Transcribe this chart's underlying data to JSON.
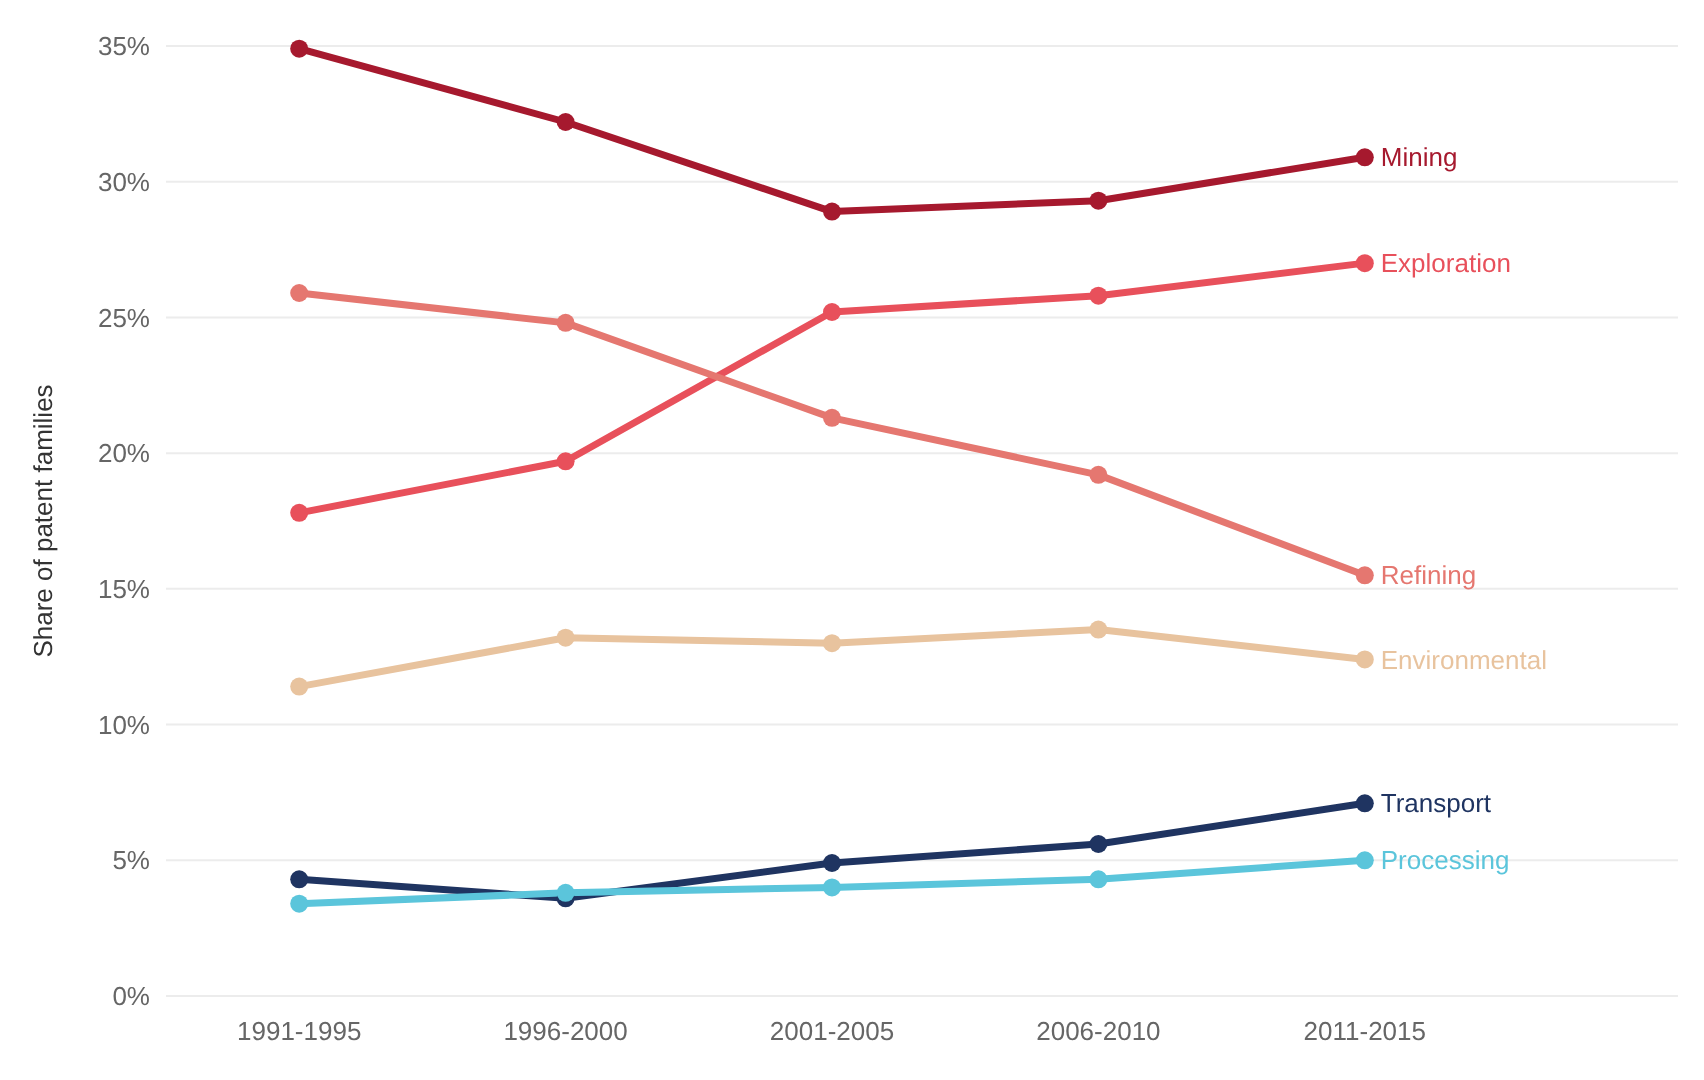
{
  "chart_data": {
    "type": "line",
    "ylabel": "Share of patent families",
    "categories": [
      "1991-1995",
      "1996-2000",
      "2001-2005",
      "2006-2010",
      "2011-2015"
    ],
    "ylim": [
      0,
      35
    ],
    "yticks": [
      {
        "value": 0,
        "label": "0%"
      },
      {
        "value": 5,
        "label": "5%"
      },
      {
        "value": 10,
        "label": "10%"
      },
      {
        "value": 15,
        "label": "15%"
      },
      {
        "value": 20,
        "label": "20%"
      },
      {
        "value": 25,
        "label": "25%"
      },
      {
        "value": 30,
        "label": "30%"
      },
      {
        "value": 35,
        "label": "35%"
      }
    ],
    "grid": "y",
    "marker": "circle",
    "line_style": "solid",
    "series": [
      {
        "name": "Mining",
        "color": "#a6192e",
        "values": [
          34.9,
          32.2,
          28.9,
          29.3,
          30.9
        ]
      },
      {
        "name": "Exploration",
        "color": "#e8505b",
        "values": [
          17.8,
          19.7,
          25.2,
          25.8,
          27.0
        ]
      },
      {
        "name": "Refining",
        "color": "#e57770",
        "values": [
          25.9,
          24.8,
          21.3,
          19.2,
          15.5
        ]
      },
      {
        "name": "Environmental",
        "color": "#e8c39e",
        "values": [
          11.4,
          13.2,
          13.0,
          13.5,
          12.4
        ]
      },
      {
        "name": "Transport",
        "color": "#1f3461",
        "values": [
          4.3,
          3.6,
          4.9,
          5.6,
          7.1
        ]
      },
      {
        "name": "Processing",
        "color": "#5bc5db",
        "values": [
          3.4,
          3.8,
          4.0,
          4.3,
          5.0
        ]
      }
    ]
  }
}
